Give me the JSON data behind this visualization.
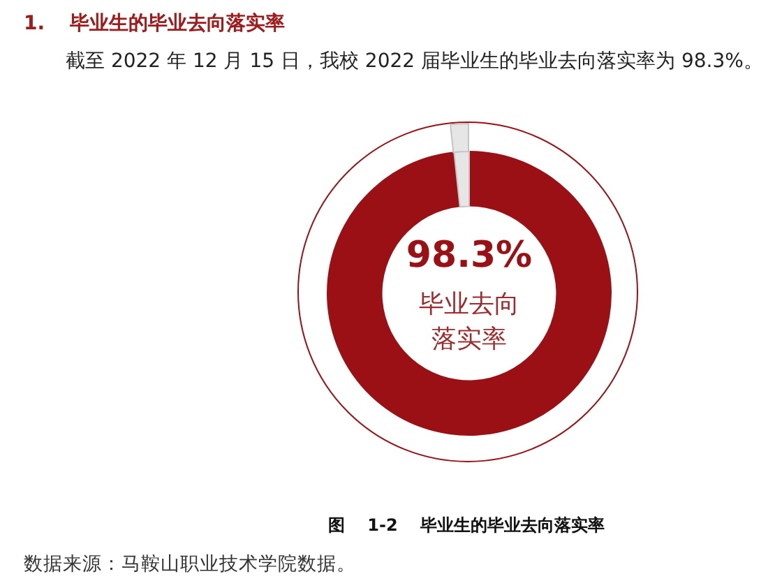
{
  "chart_data": {
    "type": "donut",
    "title": "1. 毕业生的毕业去向落实率",
    "subtitle": "截至 2022 年 12 月 15 日，我校 2022 届毕业生的毕业去向落实率为 98.3%。",
    "categories": [
      "毕业去向落实率",
      null
    ],
    "values": [
      98.3,
      1.7
    ],
    "colors": [
      "#9b1015",
      "#e6e6e6"
    ],
    "value_labels": [
      "98.3%",
      null
    ],
    "annotations": [
      "图 1-2 毕业生的毕业去向落实率",
      "数据来源：马鞍山职业技术学院数据。"
    ]
  }
}
